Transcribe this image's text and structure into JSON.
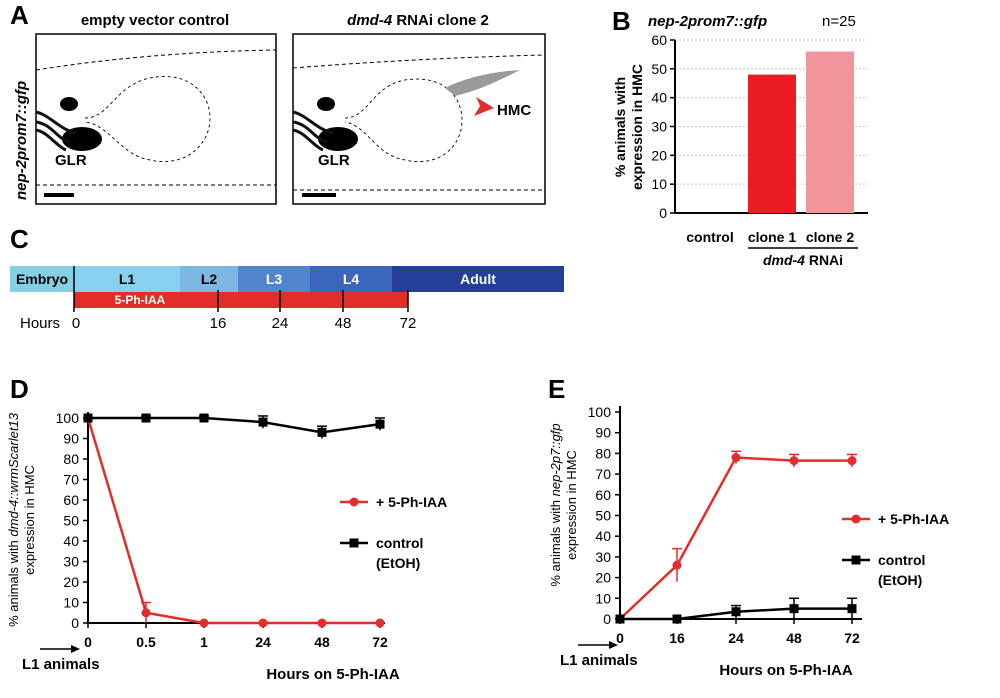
{
  "panel_letters": [
    "A",
    "B",
    "C",
    "D",
    "E"
  ],
  "panel_a": {
    "ylabel": "nep-2prom7::gfp",
    "left_title": "empty vector control",
    "right_title_gene": "dmd-4",
    "right_title_rest": " RNAi clone 2",
    "glr_label": "GLR",
    "hmc_label": "HMC"
  },
  "colors": {
    "red": "#e22d2a",
    "pink": "#f0959b",
    "bright_red": "#ea1b23",
    "embryo": "#84cfe4",
    "l1": "#86d1ee",
    "l2": "#7cb6e3",
    "l3": "#4f86cd",
    "l4": "#3a66bc",
    "adult": "#243f97"
  },
  "timeline": {
    "stages": [
      {
        "label": "Embryo",
        "key": "embryo"
      },
      {
        "label": "L1",
        "key": "l1"
      },
      {
        "label": "L2",
        "key": "l2"
      },
      {
        "label": "L3",
        "key": "l3"
      },
      {
        "label": "L4",
        "key": "l4"
      },
      {
        "label": "Adult",
        "key": "adult"
      }
    ],
    "treatment_label": "5-Ph-IAA",
    "hours_label": "Hours",
    "hour_ticks": [
      "0",
      "16",
      "24",
      "48",
      "72"
    ]
  },
  "chart_data": [
    {
      "panel": "B",
      "type": "bar",
      "title": "nep-2prom7::gfp",
      "n_label": "n=25",
      "ylabel_line1": "% animals with",
      "ylabel_line2": "expression in HMC",
      "categories": [
        "control",
        "clone 1",
        "clone 2"
      ],
      "values": [
        0,
        48,
        56
      ],
      "group_label_gene": "dmd-4",
      "group_label_rest": " RNAi",
      "ylim": [
        0,
        60
      ],
      "yticks": [
        0,
        10,
        20,
        30,
        40,
        50,
        60
      ],
      "grid": true
    },
    {
      "panel": "D",
      "type": "line",
      "ylabel_prefix": "% animals with ",
      "ylabel_gene": "dmd-4::wrmScarlet13",
      "ylabel_line2": "expression in HMC",
      "xlabel": "Hours on 5-Ph-IAA",
      "x_annotation": "L1 animals",
      "categories": [
        "0",
        "0.5",
        "1",
        "24",
        "48",
        "72"
      ],
      "ylim": [
        0,
        100
      ],
      "yticks": [
        0,
        10,
        20,
        30,
        40,
        50,
        60,
        70,
        80,
        90,
        100
      ],
      "series": [
        {
          "name": "+ 5-Ph-IAA",
          "marker": "circle",
          "values": [
            100,
            5,
            0,
            0,
            0,
            0
          ],
          "errors": [
            0,
            5,
            0,
            0,
            0,
            0
          ]
        },
        {
          "name": "control (EtOH)",
          "name_line1": "control",
          "name_line2": "(EtOH)",
          "marker": "square",
          "values": [
            100,
            100,
            100,
            98,
            93,
            97
          ],
          "errors": [
            0,
            1,
            1,
            3,
            3,
            3
          ]
        }
      ]
    },
    {
      "panel": "E",
      "type": "line",
      "ylabel_prefix": "% animals with ",
      "ylabel_gene": "nep-2p7::gfp",
      "ylabel_line2": "expression in HMC",
      "xlabel": "Hours on 5-Ph-IAA",
      "x_annotation": "L1 animals",
      "categories": [
        "0",
        "16",
        "24",
        "48",
        "72"
      ],
      "ylim": [
        0,
        100
      ],
      "yticks": [
        0,
        10,
        20,
        30,
        40,
        50,
        60,
        70,
        80,
        90,
        100
      ],
      "series": [
        {
          "name": "+ 5-Ph-IAA",
          "marker": "circle",
          "values": [
            0,
            26,
            78,
            76.5,
            76.5
          ],
          "errors": [
            0,
            8,
            3,
            3,
            3
          ]
        },
        {
          "name": "control (EtOH)",
          "name_line1": "control",
          "name_line2": "(EtOH)",
          "marker": "square",
          "values": [
            0,
            0,
            3.5,
            5,
            5
          ],
          "errors": [
            0,
            0,
            3,
            5,
            5
          ]
        }
      ]
    }
  ]
}
